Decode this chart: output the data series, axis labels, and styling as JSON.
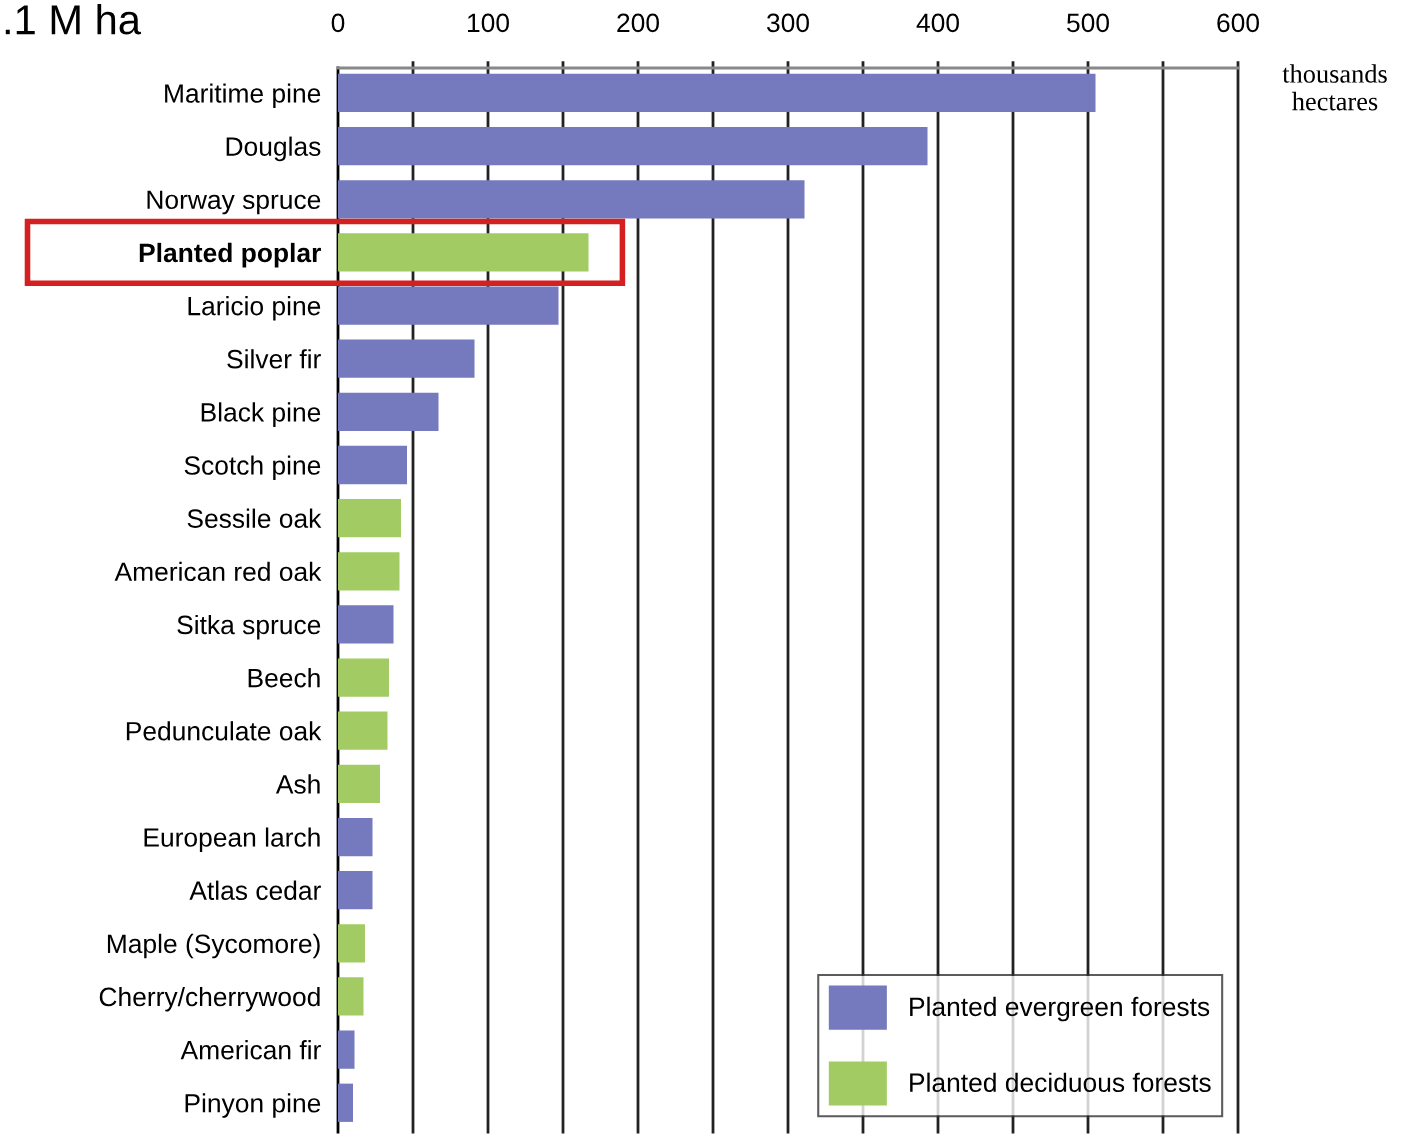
{
  "chart_data": {
    "type": "bar",
    "orientation": "horizontal",
    "xlabel": "thousands\nhectares",
    "annotations": [
      ".1 M ha"
    ],
    "categories": [
      "Maritime pine",
      "Douglas",
      "Norway spruce",
      "Planted poplar",
      "Laricio pine",
      "Silver fir",
      "Black pine",
      "Scotch pine",
      "Sessile oak",
      "American red oak",
      "Sitka spruce",
      "Beech",
      "Pedunculate oak",
      "Ash",
      "European larch",
      "Atlas cedar",
      "Maple (Sycomore)",
      "Cherry/cherrywood",
      "American fir",
      "Pinyon pine"
    ],
    "series": [
      {
        "name": "Planted evergreen forests",
        "color": "#7579bd",
        "values": [
          505,
          393,
          311,
          null,
          147,
          91,
          67,
          46,
          null,
          null,
          37,
          null,
          null,
          null,
          23,
          23,
          null,
          null,
          11,
          10
        ]
      },
      {
        "name": "Planted deciduous forests",
        "color": "#a2cb63",
        "values": [
          null,
          null,
          null,
          167,
          null,
          null,
          null,
          null,
          42,
          41,
          null,
          34,
          33,
          28,
          null,
          null,
          18,
          17,
          null,
          null
        ]
      }
    ],
    "xlim": [
      0,
      600
    ],
    "xticks": [
      0,
      100,
      200,
      300,
      400,
      500,
      600
    ],
    "grid": "x",
    "legend": "bottom right"
  }
}
